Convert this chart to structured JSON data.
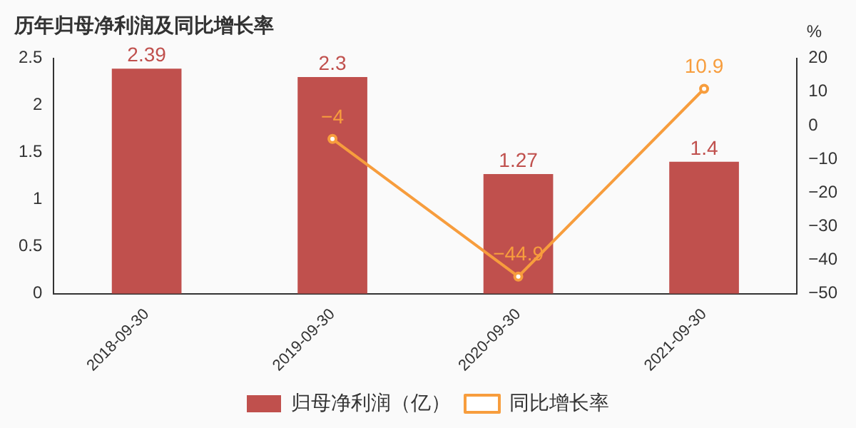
{
  "chart_data": {
    "type": "bar",
    "title": "历年归母净利润及同比增长率",
    "y2label": "%",
    "categories": [
      "2018-09-30",
      "2019-09-30",
      "2020-09-30",
      "2021-09-30"
    ],
    "series": [
      {
        "name": "归母净利润（亿）",
        "color": "#c0504d",
        "values": [
          2.39,
          2.3,
          1.27,
          1.4
        ]
      },
      {
        "name": "同比增长率",
        "type": "line",
        "axis": "y2",
        "color": "#f79d3d",
        "marker": "circle",
        "values": [
          null,
          -4,
          -44.9,
          10.9
        ]
      }
    ],
    "ylim": [
      0,
      2.5
    ],
    "yticks": [
      0,
      0.5,
      1,
      1.5,
      2,
      2.5
    ],
    "y2lim": [
      -50,
      20
    ],
    "y2ticks": [
      -50,
      -40,
      -30,
      -20,
      -10,
      0,
      10,
      20
    ],
    "grid": false,
    "legend": "bottom",
    "data_labels": true
  }
}
